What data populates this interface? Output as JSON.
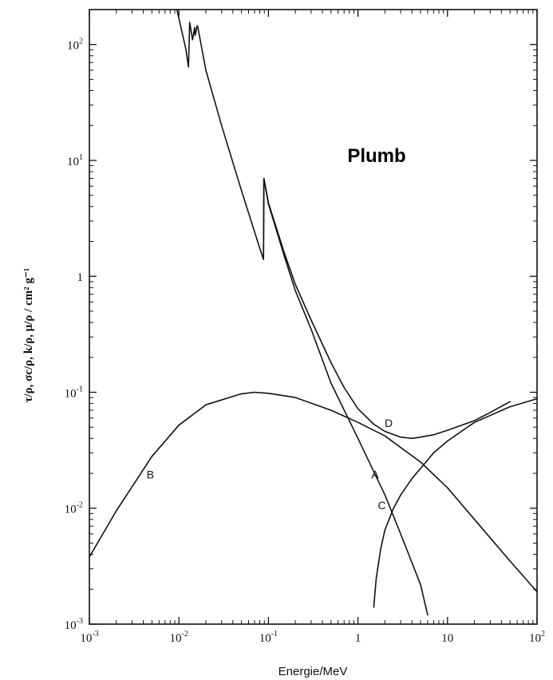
{
  "chart_data": {
    "type": "line",
    "title": "Plumb",
    "xlabel": "Energie/MeV",
    "ylabel": "τ/ρ, σc/ρ, k/ρ, μ/ρ / cm² g⁻¹",
    "xscale": "log",
    "yscale": "log",
    "xlim": [
      0.001,
      100
    ],
    "ylim": [
      0.001,
      200
    ],
    "grid": false,
    "x_ticks": [
      {
        "base": "10",
        "exp": "-3",
        "value": 0.001
      },
      {
        "base": "10",
        "exp": "-2",
        "value": 0.01
      },
      {
        "base": "10",
        "exp": "-1",
        "value": 0.1
      },
      {
        "base": "1",
        "exp": "",
        "value": 1
      },
      {
        "base": "10",
        "exp": "",
        "value": 10
      },
      {
        "base": "10",
        "exp": "2",
        "value": 100
      }
    ],
    "y_ticks": [
      {
        "base": "10",
        "exp": "-3",
        "value": 0.001
      },
      {
        "base": "10",
        "exp": "-2",
        "value": 0.01
      },
      {
        "base": "10",
        "exp": "-1",
        "value": 0.1
      },
      {
        "base": "1",
        "exp": "",
        "value": 1
      },
      {
        "base": "10",
        "exp": "1",
        "value": 10
      },
      {
        "base": "10",
        "exp": "2",
        "value": 100
      }
    ],
    "series": [
      {
        "name": "A",
        "x": [
          0.0095,
          0.012,
          0.0128,
          0.0132,
          0.0142,
          0.015,
          0.0152,
          0.016,
          0.0163,
          0.02,
          0.03,
          0.05,
          0.08,
          0.088,
          0.089,
          0.1,
          0.15,
          0.2,
          0.3,
          0.5,
          1,
          2,
          3,
          5,
          6
        ],
        "y": [
          200,
          90,
          64,
          155,
          110,
          140,
          120,
          145,
          140,
          60,
          20,
          5.5,
          1.75,
          1.4,
          7,
          4.2,
          1.5,
          0.75,
          0.35,
          0.12,
          0.04,
          0.013,
          0.006,
          0.0022,
          0.0012
        ]
      },
      {
        "name": "B",
        "x": [
          0.001,
          0.002,
          0.005,
          0.01,
          0.02,
          0.05,
          0.07,
          0.1,
          0.2,
          0.5,
          1,
          2,
          5,
          10,
          20,
          50,
          100
        ],
        "y": [
          0.0038,
          0.0095,
          0.028,
          0.052,
          0.078,
          0.097,
          0.1,
          0.098,
          0.09,
          0.07,
          0.055,
          0.042,
          0.025,
          0.015,
          0.008,
          0.0035,
          0.0019
        ]
      },
      {
        "name": "C",
        "x": [
          1.5,
          1.6,
          1.8,
          2,
          2.5,
          3,
          4,
          5,
          7,
          10,
          20,
          50,
          100
        ],
        "y": [
          0.0014,
          0.0025,
          0.0045,
          0.0065,
          0.01,
          0.013,
          0.018,
          0.022,
          0.03,
          0.038,
          0.055,
          0.075,
          0.088
        ]
      },
      {
        "name": "D",
        "x": [
          0.088,
          0.089,
          0.1,
          0.15,
          0.2,
          0.3,
          0.5,
          0.7,
          1,
          1.5,
          2,
          3,
          4,
          5,
          7,
          10,
          20,
          30,
          50
        ],
        "y": [
          1.45,
          7,
          4.3,
          1.6,
          0.85,
          0.42,
          0.18,
          0.11,
          0.072,
          0.053,
          0.046,
          0.041,
          0.04,
          0.041,
          0.043,
          0.047,
          0.057,
          0.067,
          0.083
        ]
      }
    ],
    "labels": [
      {
        "text": "A",
        "x": 1.55,
        "y": 0.018
      },
      {
        "text": "B",
        "x": 0.0048,
        "y": 0.018
      },
      {
        "text": "C",
        "x": 1.85,
        "y": 0.0098
      },
      {
        "text": "D",
        "x": 2.2,
        "y": 0.05
      }
    ]
  }
}
